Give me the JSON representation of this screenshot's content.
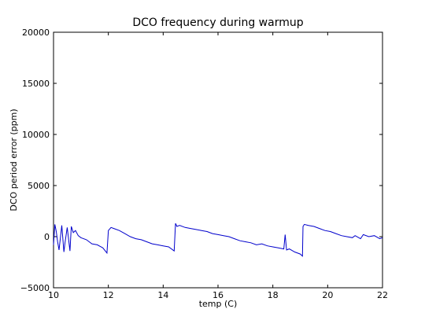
{
  "chart_data": {
    "type": "line",
    "title": "DCO frequency during warmup",
    "xlabel": "temp (C)",
    "ylabel": "DCO period error (ppm)",
    "xlim": [
      10,
      22
    ],
    "ylim": [
      -5000,
      20000
    ],
    "xticks": [
      "10",
      "12",
      "14",
      "16",
      "18",
      "20",
      "22"
    ],
    "yticks": [
      "20000",
      "15000",
      "10000",
      "5000",
      "0",
      "−5000"
    ],
    "grid": false,
    "legend": "none",
    "series": [
      {
        "color": "#0000cc",
        "x": [
          10.0,
          10.05,
          10.1,
          10.15,
          10.2,
          10.3,
          10.38,
          10.42,
          10.5,
          10.6,
          10.65,
          10.72,
          10.8,
          10.9,
          11.0,
          11.2,
          11.4,
          11.6,
          11.8,
          11.95,
          12.0,
          12.1,
          12.2,
          12.4,
          12.6,
          12.8,
          13.0,
          13.2,
          13.4,
          13.6,
          13.8,
          14.0,
          14.2,
          14.4,
          14.45,
          14.5,
          14.6,
          14.8,
          15.0,
          15.2,
          15.4,
          15.6,
          15.8,
          16.0,
          16.2,
          16.4,
          16.6,
          16.8,
          17.0,
          17.2,
          17.4,
          17.6,
          17.8,
          18.0,
          18.2,
          18.4,
          18.45,
          18.5,
          18.6,
          18.8,
          19.0,
          19.08,
          19.1,
          19.15,
          19.3,
          19.5,
          19.7,
          19.9,
          20.1,
          20.3,
          20.5,
          20.7,
          20.9,
          21.0,
          21.2,
          21.3,
          21.5,
          21.7,
          21.9,
          22.0
        ],
        "y": [
          -800,
          1200,
          500,
          -500,
          -1300,
          1100,
          -1500,
          -600,
          900,
          -1400,
          1000,
          400,
          600,
          100,
          -100,
          -300,
          -700,
          -800,
          -1100,
          -1600,
          600,
          900,
          800,
          600,
          300,
          0,
          -200,
          -300,
          -500,
          -700,
          -800,
          -900,
          -1000,
          -1400,
          1300,
          1000,
          1100,
          900,
          800,
          700,
          600,
          500,
          300,
          200,
          100,
          0,
          -200,
          -400,
          -500,
          -600,
          -800,
          -700,
          -900,
          -1000,
          -1100,
          -1200,
          200,
          -1300,
          -1200,
          -1500,
          -1700,
          -1900,
          1000,
          1200,
          1100,
          1000,
          800,
          600,
          500,
          300,
          100,
          0,
          -100,
          100,
          -200,
          200,
          0,
          100,
          -200,
          -100
        ]
      }
    ]
  }
}
